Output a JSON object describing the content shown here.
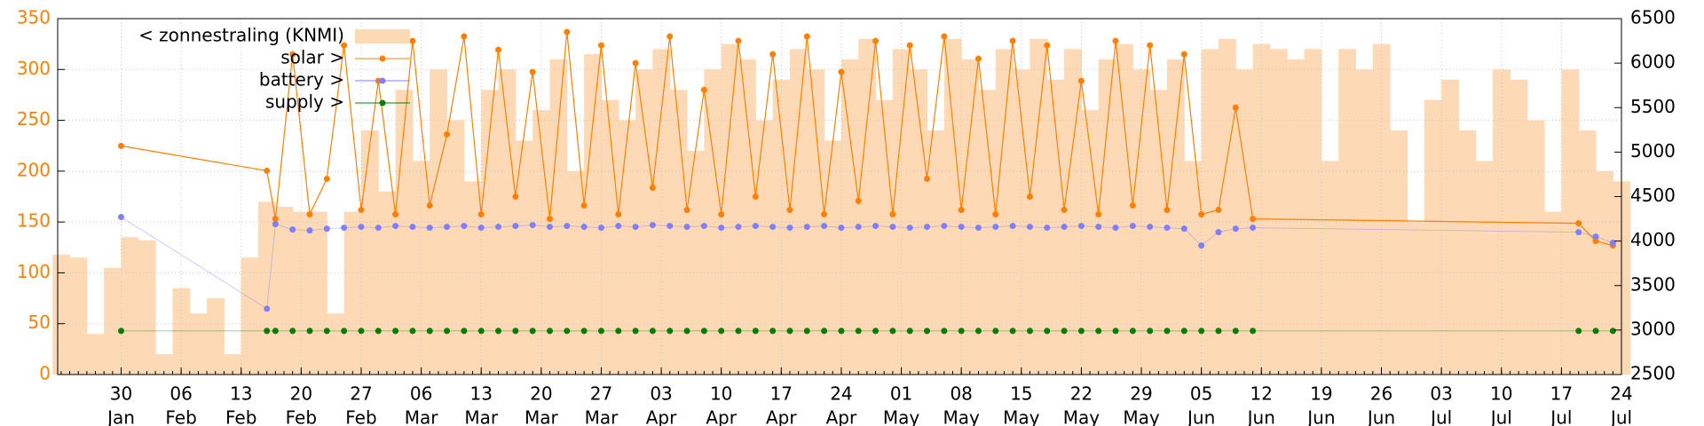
{
  "chart_data": {
    "type": "line",
    "legend": "upper left",
    "grid": true,
    "xlim": [
      22.6,
      205
    ],
    "xticks": [
      {
        "value": 30,
        "label": "30",
        "month": "Jan"
      },
      {
        "value": 37,
        "label": "06",
        "month": "Feb"
      },
      {
        "value": 44,
        "label": "13",
        "month": "Feb"
      },
      {
        "value": 51,
        "label": "20",
        "month": "Feb"
      },
      {
        "value": 58,
        "label": "27",
        "month": "Feb"
      },
      {
        "value": 65,
        "label": "06",
        "month": "Mar"
      },
      {
        "value": 72,
        "label": "13",
        "month": "Mar"
      },
      {
        "value": 79,
        "label": "20",
        "month": "Mar"
      },
      {
        "value": 86,
        "label": "27",
        "month": "Mar"
      },
      {
        "value": 93,
        "label": "03",
        "month": "Apr"
      },
      {
        "value": 100,
        "label": "10",
        "month": "Apr"
      },
      {
        "value": 107,
        "label": "17",
        "month": "Apr"
      },
      {
        "value": 114,
        "label": "24",
        "month": "Apr"
      },
      {
        "value": 121,
        "label": "01",
        "month": "May"
      },
      {
        "value": 128,
        "label": "08",
        "month": "May"
      },
      {
        "value": 135,
        "label": "15",
        "month": "May"
      },
      {
        "value": 142,
        "label": "22",
        "month": "May"
      },
      {
        "value": 149,
        "label": "29",
        "month": "May"
      },
      {
        "value": 156,
        "label": "05",
        "month": "Jun"
      },
      {
        "value": 163,
        "label": "12",
        "month": "Jun"
      },
      {
        "value": 170,
        "label": "19",
        "month": "Jun"
      },
      {
        "value": 177,
        "label": "26",
        "month": "Jun"
      },
      {
        "value": 184,
        "label": "03",
        "month": "Jul"
      },
      {
        "value": 191,
        "label": "10",
        "month": "Jul"
      },
      {
        "value": 198,
        "label": "17",
        "month": "Jul"
      },
      {
        "value": 205,
        "label": "24",
        "month": "Jul"
      }
    ],
    "ylim": [
      0,
      350
    ],
    "yticks": [
      0,
      50,
      100,
      150,
      200,
      250,
      300,
      350
    ],
    "y2lim": [
      2500,
      6500
    ],
    "y2ticks": [
      2500,
      3000,
      3500,
      4000,
      4500,
      5000,
      5500,
      6000,
      6500
    ],
    "series": [
      {
        "name": "< zonnestraling (KNMI)",
        "color": "#fdd9b5",
        "style": "bars",
        "axis": "y",
        "x": [
          23,
          25,
          27,
          29,
          31,
          33,
          35,
          37,
          39,
          41,
          43,
          45,
          47,
          49,
          51,
          53,
          55,
          57,
          59,
          61,
          63,
          65,
          67,
          69,
          71,
          73,
          75,
          77,
          79,
          81,
          83,
          85,
          87,
          89,
          91,
          93,
          95,
          97,
          99,
          101,
          103,
          105,
          107,
          109,
          111,
          113,
          115,
          117,
          119,
          121,
          123,
          125,
          127,
          129,
          131,
          133,
          135,
          137,
          139,
          141,
          143,
          145,
          147,
          149,
          151,
          153,
          155,
          157,
          159,
          161,
          163,
          165,
          167,
          169,
          171,
          173,
          175,
          177,
          179,
          181,
          183,
          185,
          187,
          189,
          191,
          193,
          195,
          197,
          199,
          201,
          203,
          205
        ],
        "values": [
          118,
          115,
          40,
          105,
          135,
          132,
          20,
          85,
          60,
          75,
          20,
          115,
          170,
          165,
          160,
          160,
          60,
          160,
          240,
          180,
          280,
          210,
          300,
          250,
          190,
          280,
          300,
          230,
          260,
          310,
          200,
          315,
          270,
          250,
          300,
          320,
          280,
          220,
          300,
          325,
          310,
          250,
          290,
          320,
          300,
          230,
          310,
          330,
          270,
          320,
          300,
          240,
          330,
          310,
          280,
          320,
          300,
          330,
          290,
          320,
          260,
          310,
          325,
          300,
          280,
          310,
          210,
          320,
          330,
          300,
          325,
          320,
          310,
          320,
          210,
          320,
          300,
          325,
          240,
          150,
          270,
          290,
          240,
          210,
          300,
          290,
          250,
          160,
          300,
          240,
          200,
          190
        ]
      },
      {
        "name": "solar >",
        "color": "#ff8000",
        "style": "linespoints",
        "axis": "y2",
        "x": [
          30,
          47,
          48,
          50,
          52,
          54,
          56,
          58,
          60,
          62,
          64,
          66,
          68,
          70,
          72,
          74,
          76,
          78,
          80,
          82,
          84,
          86,
          88,
          90,
          92,
          94,
          96,
          98,
          100,
          102,
          104,
          106,
          108,
          110,
          112,
          114,
          116,
          118,
          120,
          122,
          124,
          126,
          128,
          130,
          132,
          134,
          136,
          138,
          140,
          142,
          144,
          146,
          148,
          150,
          152,
          154,
          156,
          158,
          160,
          162,
          200,
          202,
          204
        ],
        "values": [
          5070,
          4790,
          4250,
          6100,
          4300,
          4700,
          6200,
          4350,
          5800,
          4300,
          6250,
          4400,
          5200,
          6300,
          4300,
          6150,
          4500,
          5900,
          4250,
          6350,
          4400,
          6200,
          4300,
          6000,
          4600,
          6300,
          4350,
          5700,
          4300,
          6250,
          4500,
          6100,
          4350,
          6300,
          4300,
          5900,
          4450,
          6250,
          4300,
          6200,
          4700,
          6300,
          4350,
          6050,
          4300,
          6250,
          4500,
          6200,
          4350,
          5800,
          4300,
          6250,
          4400,
          6200,
          4350,
          6100,
          4300,
          4350,
          5500,
          4250,
          4200,
          4000,
          3950
        ]
      },
      {
        "name": "battery >",
        "color": "#7f7fff",
        "style": "linespoints",
        "axis": "y2",
        "x": [
          30,
          47,
          48,
          50,
          52,
          54,
          56,
          58,
          60,
          62,
          64,
          66,
          68,
          70,
          72,
          74,
          76,
          78,
          80,
          82,
          84,
          86,
          88,
          90,
          92,
          94,
          96,
          98,
          100,
          102,
          104,
          106,
          108,
          110,
          112,
          114,
          116,
          118,
          120,
          122,
          124,
          126,
          128,
          130,
          132,
          134,
          136,
          138,
          140,
          142,
          144,
          146,
          148,
          150,
          152,
          154,
          156,
          158,
          160,
          162,
          200,
          202,
          204
        ],
        "values": [
          4270,
          3240,
          4190,
          4130,
          4120,
          4140,
          4150,
          4160,
          4150,
          4170,
          4160,
          4150,
          4160,
          4170,
          4150,
          4160,
          4170,
          4180,
          4160,
          4170,
          4160,
          4150,
          4170,
          4160,
          4180,
          4170,
          4160,
          4170,
          4150,
          4160,
          4170,
          4160,
          4150,
          4160,
          4170,
          4150,
          4160,
          4170,
          4160,
          4150,
          4160,
          4170,
          4160,
          4150,
          4160,
          4170,
          4160,
          4150,
          4160,
          4170,
          4160,
          4150,
          4170,
          4160,
          4150,
          4140,
          3950,
          4100,
          4140,
          4150,
          4100,
          4050,
          3980
        ]
      },
      {
        "name": "supply >",
        "color": "#008000",
        "style": "linespoints",
        "axis": "y2",
        "x": [
          30,
          47,
          48,
          50,
          52,
          54,
          56,
          58,
          60,
          62,
          64,
          66,
          68,
          70,
          72,
          74,
          76,
          78,
          80,
          82,
          84,
          86,
          88,
          90,
          92,
          94,
          96,
          98,
          100,
          102,
          104,
          106,
          108,
          110,
          112,
          114,
          116,
          118,
          120,
          122,
          124,
          126,
          128,
          130,
          132,
          134,
          136,
          138,
          140,
          142,
          144,
          146,
          148,
          150,
          152,
          154,
          156,
          158,
          160,
          162,
          200,
          202,
          204
        ],
        "values": [
          2990,
          2990,
          2990,
          2990,
          2990,
          2990,
          2990,
          2990,
          2990,
          2990,
          2990,
          2990,
          2990,
          2990,
          2990,
          2990,
          2990,
          2990,
          2990,
          2990,
          2990,
          2990,
          2990,
          2990,
          2990,
          2990,
          2990,
          2990,
          2990,
          2990,
          2990,
          2990,
          2990,
          2990,
          2990,
          2990,
          2990,
          2990,
          2990,
          2990,
          2990,
          2990,
          2990,
          2990,
          2990,
          2990,
          2990,
          2990,
          2990,
          2990,
          2990,
          2990,
          2990,
          2990,
          2990,
          2990,
          2990,
          2990,
          2990,
          2990,
          2990,
          2990,
          2990
        ]
      }
    ]
  }
}
